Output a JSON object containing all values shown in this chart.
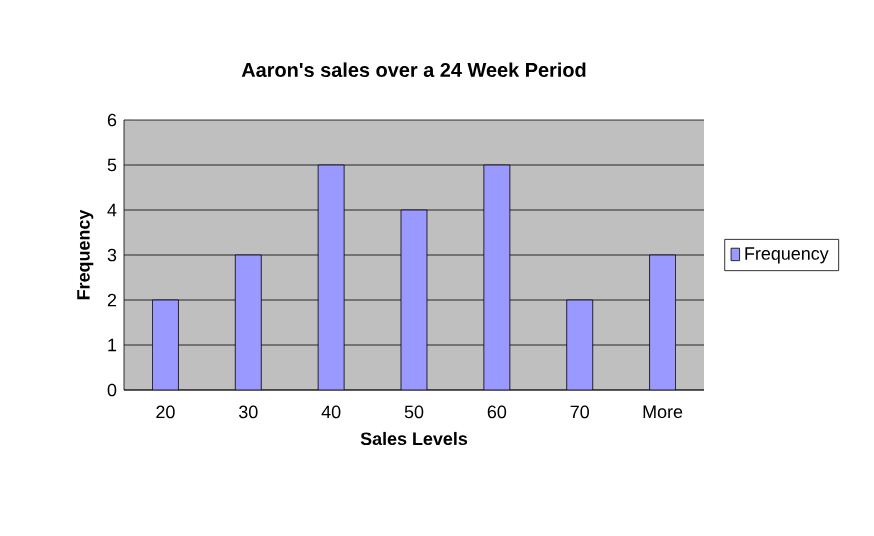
{
  "chart_data": {
    "type": "bar",
    "title": "Aaron's sales over a 24 Week Period",
    "xlabel": "Sales Levels",
    "ylabel": "Frequency",
    "categories": [
      "20",
      "30",
      "40",
      "50",
      "60",
      "70",
      "More"
    ],
    "series": [
      {
        "name": "Frequency",
        "color": "#9999ff",
        "values": [
          2,
          3,
          5,
          4,
          5,
          2,
          3
        ]
      }
    ],
    "ylim": [
      0,
      6
    ],
    "yticks": [
      0,
      1,
      2,
      3,
      4,
      5,
      6
    ],
    "grid": "y",
    "legend": "right"
  }
}
